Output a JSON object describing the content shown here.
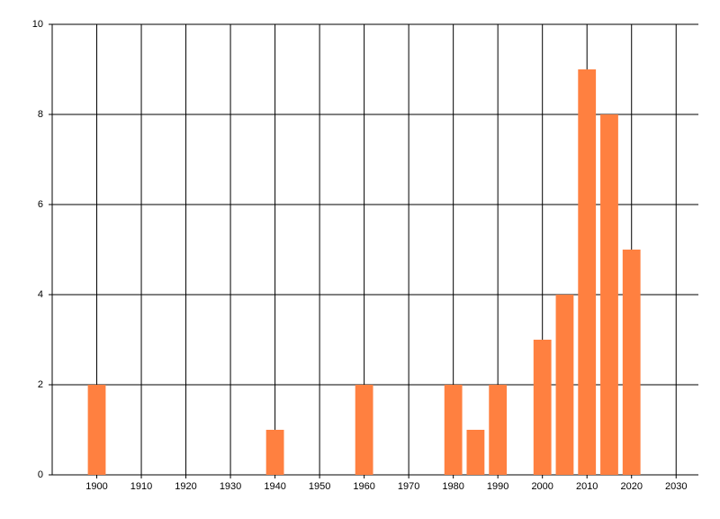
{
  "chart_data": {
    "type": "bar",
    "x": [
      1900,
      1940,
      1960,
      1980,
      1985,
      1990,
      2000,
      2005,
      2010,
      2015,
      2020
    ],
    "values": [
      2,
      1,
      2,
      2,
      1,
      2,
      3,
      4,
      9,
      8,
      5
    ],
    "color": "#ff8040",
    "xlim": [
      1890,
      2035
    ],
    "xticks": [
      1900,
      1910,
      1920,
      1930,
      1940,
      1950,
      1960,
      1970,
      1980,
      1990,
      2000,
      2010,
      2020,
      2030
    ],
    "ylim": [
      0,
      10
    ],
    "yticks": [
      0,
      2,
      4,
      6,
      8,
      10
    ],
    "grid": true
  }
}
